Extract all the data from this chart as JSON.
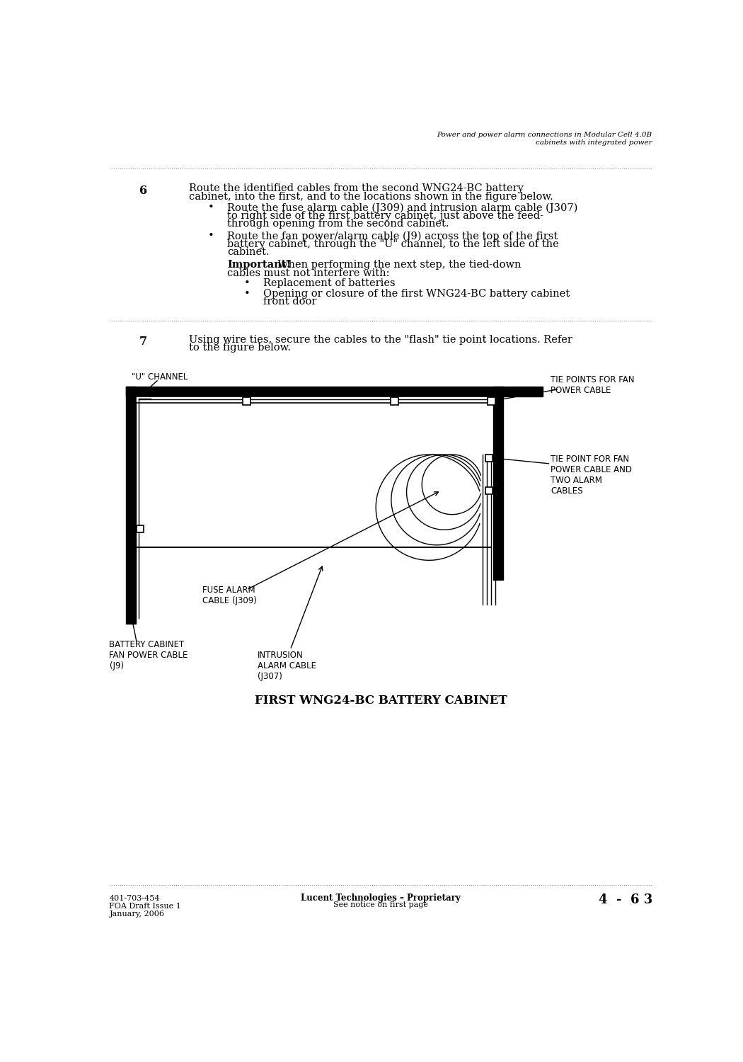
{
  "page_width": 10.5,
  "page_height": 15.0,
  "bg_color": "#ffffff",
  "header_italic_line1": "Power and power alarm connections in Modular Cell 4.0B",
  "header_italic_line2": "cabinets with integrated power",
  "footer_left_line1": "401-703-454",
  "footer_left_line2": "FOA Draft Issue 1",
  "footer_left_line3": "January, 2006",
  "footer_center_line1": "Lucent Technologies – Proprietary",
  "footer_center_line2": "See notice on first page",
  "footer_right": "4  -  6 3",
  "step6_number": "6",
  "step6_text_line1": "Route the identified cables from the second WNG24-BC battery",
  "step6_text_line2": "cabinet, into the first, and to the locations shown in the figure below.",
  "bullet1_line1": "Route the fuse alarm cable (J309) and intrusion alarm cable (J307)",
  "bullet1_line2": "to right side of the first battery cabinet, just above the feed-",
  "bullet1_line3": "through opening from the second cabinet.",
  "bullet2_line1": "Route the fan power/alarm cable (J9) across the top of the first",
  "bullet2_line2": "battery cabinet, through the \"U\" channel, to the left side of the",
  "bullet2_line3": "cabinet.",
  "important_bold": "Important!",
  "important_text_rest": "    When performing the next step, the tied-down",
  "important_text_line2": "cables must not interfere with:",
  "sub_bullet1": "Replacement of batteries",
  "sub_bullet2_line1": "Opening or closure of the first WNG24-BC battery cabinet",
  "sub_bullet2_line2": "front door",
  "step7_number": "7",
  "step7_text": "Using wire ties, secure the cables to the \"flash\" tie point locations. Refer",
  "step7_text2": "to the figure below.",
  "diagram_label_u_channel": "\"U\" CHANNEL",
  "diagram_label_tie_points_fan": "TIE POINTS FOR FAN\nPOWER CABLE",
  "diagram_label_tie_point_mid": "TIE POINT FOR FAN\nPOWER CABLE AND\nTWO ALARM\nCABLES",
  "diagram_label_fuse_alarm": "FUSE ALARM\nCABLE (J309)",
  "diagram_label_fan_power": "BATTERY CABINET\nFAN POWER CABLE\n(J9)",
  "diagram_label_intrusion": "INTRUSION\nALARM CABLE\n(J307)",
  "diagram_title": "FIRST WNG24-BC BATTERY CABINET",
  "dotted_line_color": "#888888",
  "text_color": "#000000",
  "diagram_line_color": "#000000"
}
